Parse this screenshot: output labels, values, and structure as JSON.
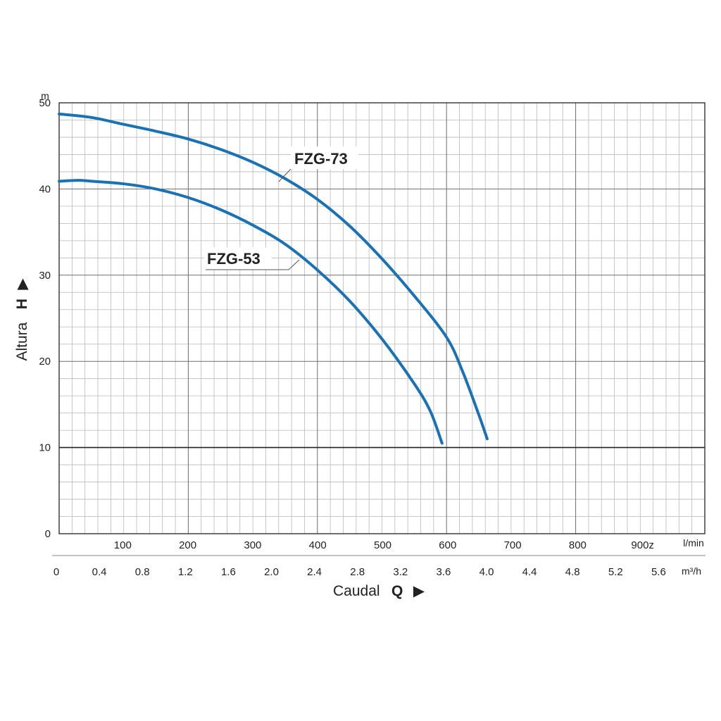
{
  "chart_data": {
    "type": "line",
    "colors": {
      "curve": "#1a72b4",
      "grid_minor": "#b9b9b9",
      "grid_major": "#6e6e6e",
      "axis": "#333333"
    },
    "grid": true,
    "y_axis": {
      "unit": "m",
      "range": [
        0,
        50
      ],
      "ticks": [
        "0",
        "10",
        "20",
        "30",
        "40",
        "50"
      ],
      "title": "Altura",
      "letter": "H",
      "arrow": "▶"
    },
    "x_axis_lmin": {
      "unit": "l/min",
      "range": [
        0,
        1000
      ],
      "ticks": [
        {
          "value": 100,
          "label": "100"
        },
        {
          "value": 200,
          "label": "200"
        },
        {
          "value": 300,
          "label": "300"
        },
        {
          "value": 400,
          "label": "400"
        },
        {
          "value": 500,
          "label": "500"
        },
        {
          "value": 600,
          "label": "600"
        },
        {
          "value": 700,
          "label": "700"
        },
        {
          "value": 800,
          "label": "800"
        },
        {
          "value": 900,
          "label": "900z"
        }
      ]
    },
    "x_axis_m3h": {
      "unit": "m³/h",
      "ticks": [
        {
          "value": 0,
          "label": "0"
        },
        {
          "value": 0.4,
          "label": "0.4"
        },
        {
          "value": 0.8,
          "label": "0.8"
        },
        {
          "value": 1.2,
          "label": "1.2"
        },
        {
          "value": 1.6,
          "label": "1.6"
        },
        {
          "value": 2.0,
          "label": "2.0"
        },
        {
          "value": 2.4,
          "label": "2.4"
        },
        {
          "value": 2.8,
          "label": "2.8"
        },
        {
          "value": 3.2,
          "label": "3.2"
        },
        {
          "value": 3.6,
          "label": "3.6"
        },
        {
          "value": 4.0,
          "label": "4.0"
        },
        {
          "value": 4.4,
          "label": "4.4"
        },
        {
          "value": 4.8,
          "label": "4.8"
        },
        {
          "value": 5.2,
          "label": "5.2"
        },
        {
          "value": 5.6,
          "label": "5.6"
        }
      ],
      "title": "Caudal",
      "letter": "Q",
      "arrow": "▶"
    },
    "series": [
      {
        "name": "FZG-73",
        "points": [
          [
            0,
            48.7
          ],
          [
            50,
            48.3
          ],
          [
            100,
            47.5
          ],
          [
            150,
            46.7
          ],
          [
            200,
            45.8
          ],
          [
            250,
            44.6
          ],
          [
            300,
            43.1
          ],
          [
            350,
            41.2
          ],
          [
            400,
            38.8
          ],
          [
            450,
            35.7
          ],
          [
            500,
            31.9
          ],
          [
            550,
            27.6
          ],
          [
            600,
            22.8
          ],
          [
            625,
            18.8
          ],
          [
            650,
            13.8
          ],
          [
            663,
            11.0
          ]
        ]
      },
      {
        "name": "FZG-53",
        "points": [
          [
            0,
            40.9
          ],
          [
            30,
            41.0
          ],
          [
            50,
            40.9
          ],
          [
            100,
            40.6
          ],
          [
            150,
            40.0
          ],
          [
            200,
            39.0
          ],
          [
            250,
            37.6
          ],
          [
            300,
            35.8
          ],
          [
            350,
            33.6
          ],
          [
            400,
            30.6
          ],
          [
            450,
            27.0
          ],
          [
            500,
            22.6
          ],
          [
            550,
            17.4
          ],
          [
            575,
            14.2
          ],
          [
            593,
            10.5
          ]
        ]
      }
    ]
  }
}
